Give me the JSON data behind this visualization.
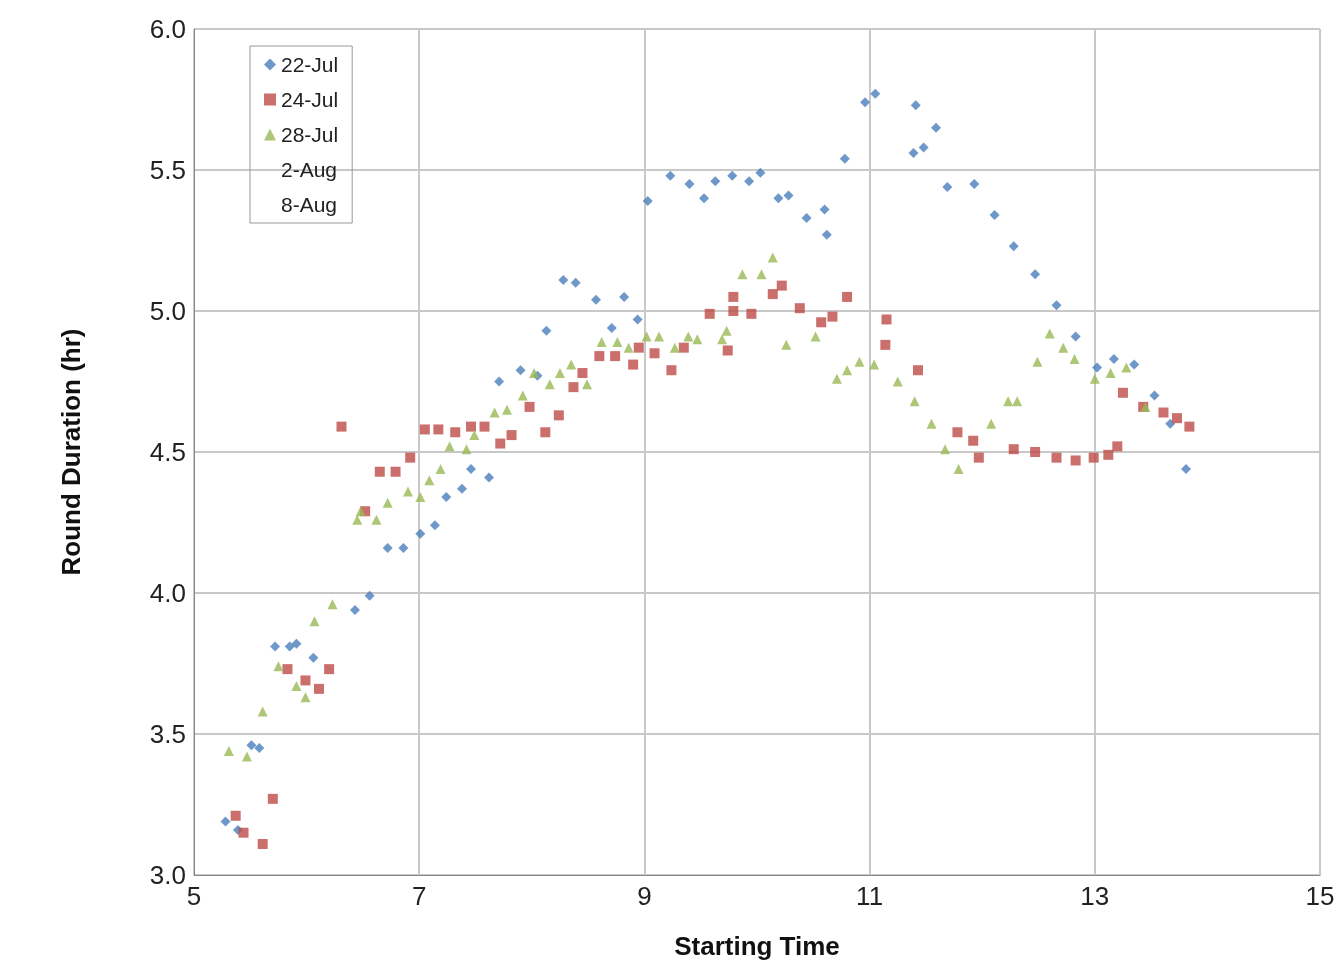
{
  "chart_data": {
    "type": "scatter",
    "xlabel": "Starting Time",
    "ylabel": "Round Duration (hr)",
    "xlim": [
      5,
      15
    ],
    "xticks": [
      5,
      7,
      9,
      11,
      13,
      15
    ],
    "ylim": [
      3,
      6
    ],
    "yticks": [
      {
        "value": 3,
        "label": "3.0"
      },
      {
        "value": 3.5,
        "label": "3.5"
      },
      {
        "value": 4,
        "label": "4.0"
      },
      {
        "value": 4.5,
        "label": "4.5"
      },
      {
        "value": 5,
        "label": "5.0"
      },
      {
        "value": 5.5,
        "label": "5.5"
      },
      {
        "value": 6,
        "label": "6.0"
      }
    ],
    "grid": true,
    "legend": "top left",
    "series": [
      {
        "name": "22-Jul",
        "color": "#4a7ebb",
        "marker": "diamond",
        "x": [
          5.28,
          5.39,
          5.51,
          5.58,
          5.72,
          5.85,
          5.91,
          6.06,
          6.43,
          6.56,
          6.72,
          6.86,
          7.01,
          7.14,
          7.24,
          7.38,
          7.46,
          7.62,
          7.71,
          7.9,
          8.05,
          8.13,
          8.28,
          8.39,
          8.57,
          8.71,
          8.82,
          8.94,
          9.03,
          9.23,
          9.4,
          9.53,
          9.63,
          9.78,
          9.93,
          10.03,
          10.19,
          10.28,
          10.44,
          10.6,
          10.62,
          10.78,
          10.96,
          11.05,
          11.41,
          11.39,
          11.48,
          11.59,
          11.69,
          11.93,
          12.11,
          12.28,
          12.47,
          12.66,
          12.83,
          13.02,
          13.17,
          13.35,
          13.53,
          13.67,
          13.81
        ],
        "values": [
          3.19,
          3.16,
          3.46,
          3.45,
          3.81,
          3.81,
          3.82,
          3.77,
          3.94,
          3.99,
          4.16,
          4.16,
          4.21,
          4.24,
          4.34,
          4.37,
          4.44,
          4.41,
          4.75,
          4.79,
          4.77,
          4.93,
          5.11,
          5.1,
          5.04,
          4.94,
          5.05,
          4.97,
          5.39,
          5.48,
          5.45,
          5.4,
          5.46,
          5.48,
          5.46,
          5.49,
          5.4,
          5.41,
          5.33,
          5.36,
          5.27,
          5.54,
          5.74,
          5.77,
          5.73,
          5.56,
          5.58,
          5.65,
          5.44,
          5.45,
          5.34,
          5.23,
          5.13,
          5.02,
          4.91,
          4.8,
          4.83,
          4.81,
          4.7,
          4.6,
          4.44
        ]
      },
      {
        "name": "24-Jul",
        "color": "#be4b48",
        "marker": "square",
        "x": [
          5.37,
          5.44,
          5.61,
          5.7,
          5.83,
          5.99,
          6.11,
          6.2,
          6.31,
          6.52,
          6.65,
          6.79,
          6.92,
          7.05,
          7.17,
          7.32,
          7.46,
          7.58,
          7.72,
          7.82,
          7.98,
          8.12,
          8.24,
          8.37,
          8.45,
          8.6,
          8.74,
          8.9,
          8.95,
          9.09,
          9.24,
          9.35,
          9.58,
          9.74,
          9.79,
          9.79,
          9.95,
          10.14,
          10.22,
          10.38,
          10.57,
          10.67,
          10.8,
          11.15,
          11.14,
          11.43,
          11.78,
          11.92,
          11.97,
          12.28,
          12.47,
          12.66,
          12.83,
          12.99,
          13.12,
          13.2,
          13.25,
          13.43,
          13.61,
          13.73,
          13.84
        ],
        "values": [
          3.21,
          3.15,
          3.11,
          3.27,
          3.73,
          3.69,
          3.66,
          3.73,
          4.59,
          4.29,
          4.43,
          4.43,
          4.48,
          4.58,
          4.58,
          4.57,
          4.59,
          4.59,
          4.53,
          4.56,
          4.66,
          4.57,
          4.63,
          4.73,
          4.78,
          4.84,
          4.84,
          4.81,
          4.87,
          4.85,
          4.79,
          4.87,
          4.99,
          4.86,
          5.05,
          5.0,
          4.99,
          5.06,
          5.09,
          5.01,
          4.96,
          4.98,
          5.05,
          4.97,
          4.88,
          4.79,
          4.57,
          4.54,
          4.48,
          4.51,
          4.5,
          4.48,
          4.47,
          4.48,
          4.49,
          4.52,
          4.71,
          4.66,
          4.64,
          4.62,
          4.59
        ]
      },
      {
        "name": "28-Jul",
        "color": "#98b954",
        "marker": "triangle",
        "x": [
          5.31,
          5.47,
          5.61,
          5.75,
          5.91,
          5.99,
          6.07,
          6.23,
          6.45,
          6.48,
          6.62,
          6.72,
          6.9,
          7.01,
          7.09,
          7.19,
          7.27,
          7.42,
          7.49,
          7.67,
          7.78,
          7.92,
          8.02,
          8.16,
          8.25,
          8.35,
          8.49,
          8.62,
          8.76,
          8.86,
          9.02,
          9.13,
          9.27,
          9.39,
          9.47,
          9.69,
          9.73,
          9.87,
          10.04,
          10.14,
          10.26,
          10.52,
          10.71,
          10.8,
          10.91,
          11.04,
          11.25,
          11.4,
          11.55,
          11.67,
          11.79,
          12.08,
          12.23,
          12.31,
          12.49,
          12.6,
          12.72,
          12.82,
          13.0,
          13.14,
          13.28,
          13.45
        ],
        "values": [
          3.44,
          3.42,
          3.58,
          3.74,
          3.67,
          3.63,
          3.9,
          3.96,
          4.26,
          4.29,
          4.26,
          4.32,
          4.36,
          4.34,
          4.4,
          4.44,
          4.52,
          4.51,
          4.56,
          4.64,
          4.65,
          4.7,
          4.78,
          4.74,
          4.78,
          4.81,
          4.74,
          4.89,
          4.89,
          4.87,
          4.91,
          4.91,
          4.87,
          4.91,
          4.9,
          4.9,
          4.93,
          5.13,
          5.13,
          5.19,
          4.88,
          4.91,
          4.76,
          4.79,
          4.82,
          4.81,
          4.75,
          4.68,
          4.6,
          4.51,
          4.44,
          4.6,
          4.68,
          4.68,
          4.82,
          4.92,
          4.87,
          4.83,
          4.76,
          4.78,
          4.8,
          4.66
        ]
      },
      {
        "name": "2-Aug",
        "marker": "none"
      },
      {
        "name": "8-Aug",
        "marker": "none"
      }
    ]
  }
}
